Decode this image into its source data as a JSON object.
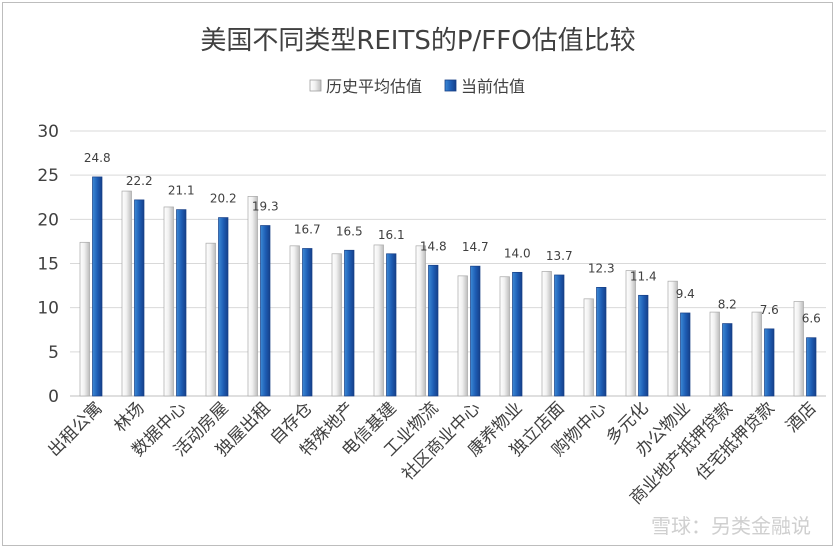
{
  "chart_data": {
    "type": "bar",
    "title": "美国不同类型REITS的P/FFO估值比较",
    "xlabel": "",
    "ylabel": "",
    "ylim": [
      0,
      30
    ],
    "yticks": [
      0,
      5,
      10,
      15,
      20,
      25,
      30
    ],
    "grid": true,
    "legend_position": "top",
    "categories": [
      "出租公寓",
      "林场",
      "数据中心",
      "活动房屋",
      "独屋出租",
      "自存仓",
      "特殊地产",
      "电信基建",
      "工业物流",
      "社区商业中心",
      "康养物业",
      "独立店面",
      "购物中心",
      "多元化",
      "办公物业",
      "商业地产抵押贷款",
      "住宅抵押贷款",
      "酒店"
    ],
    "series": [
      {
        "name": "历史平均估值",
        "color": "#e0e0e0",
        "values": [
          17.4,
          23.2,
          21.4,
          17.3,
          22.6,
          17.0,
          16.1,
          17.1,
          17.0,
          13.6,
          13.5,
          14.1,
          11.0,
          14.2,
          13.0,
          9.5,
          9.5,
          10.7
        ]
      },
      {
        "name": "当前估值",
        "color": "#2e6fc0",
        "values": [
          24.8,
          22.2,
          21.1,
          20.2,
          19.3,
          16.7,
          16.5,
          16.1,
          14.8,
          14.7,
          14.0,
          13.7,
          12.3,
          11.4,
          9.4,
          8.2,
          7.6,
          6.6
        ],
        "labels": [
          "24.8",
          "22.2",
          "21.1",
          "20.2",
          "19.3",
          "16.7",
          "16.5",
          "16.1",
          "14.8",
          "14.7",
          "14.0",
          "13.7",
          "12.3",
          "11.4",
          "9.4",
          "8.2",
          "7.6",
          "6.6"
        ]
      }
    ]
  },
  "watermark": "雪球：另类金融说"
}
